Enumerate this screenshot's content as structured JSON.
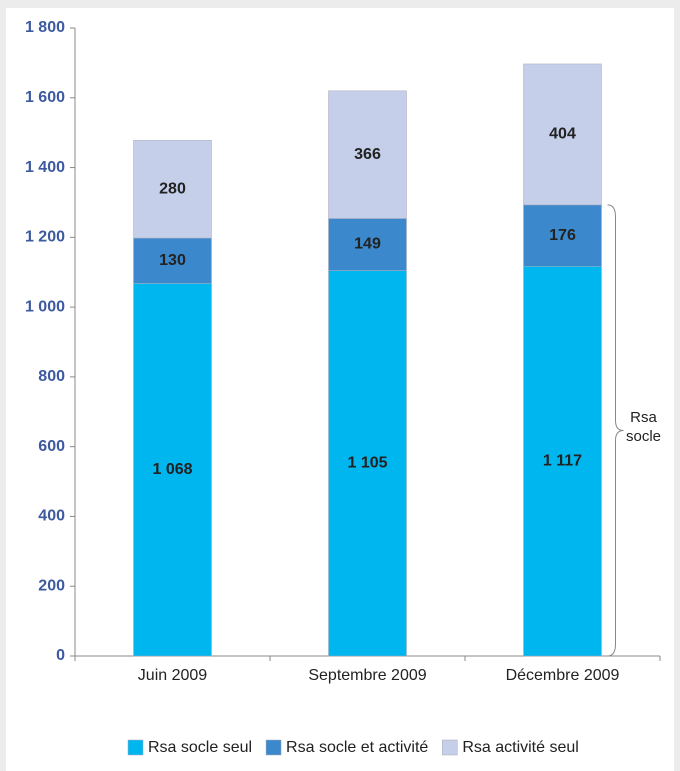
{
  "chart_data": {
    "type": "stacked_bar",
    "categories": [
      "Juin 2009",
      "Septembre 2009",
      "Décembre 2009"
    ],
    "series": [
      {
        "name": "Rsa socle seul",
        "color": "#00b6ef",
        "values": [
          1068,
          1105,
          1117
        ],
        "value_labels": [
          "1 068",
          "1 105",
          "1 117"
        ]
      },
      {
        "name": "Rsa socle et activité",
        "color": "#3b89cc",
        "values": [
          130,
          149,
          176
        ]
      },
      {
        "name": "Rsa activité seul",
        "color": "#c5cfe9",
        "values": [
          280,
          366,
          404
        ]
      }
    ],
    "ylim": [
      0,
      1800
    ],
    "yticks": [
      0,
      200,
      400,
      600,
      800,
      {
        "value": 1000,
        "label": "1 000"
      },
      {
        "value": 1200,
        "label": "1 200"
      },
      {
        "value": 1400,
        "label": "1 400"
      },
      {
        "value": 1600,
        "label": "1 600"
      },
      {
        "value": 1800,
        "label": "1 800"
      }
    ],
    "annotation": "Rsa socle",
    "legend": "bottom"
  }
}
